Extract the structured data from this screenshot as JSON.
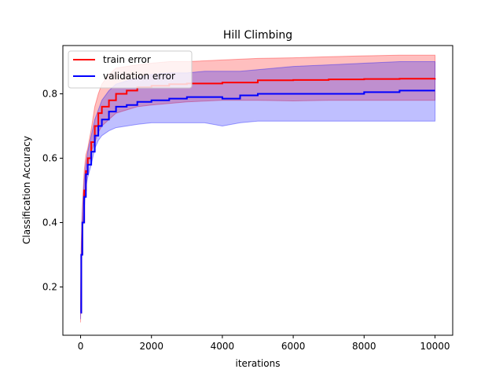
{
  "chart_data": {
    "type": "line",
    "title": "Hill Climbing",
    "xlabel": "iterations",
    "ylabel": "Classification Accuracy",
    "xlim": [
      -500,
      10500
    ],
    "ylim": [
      0.05,
      0.95
    ],
    "xticks": [
      0,
      2000,
      4000,
      6000,
      8000,
      10000
    ],
    "yticks": [
      0.2,
      0.4,
      0.6,
      0.8
    ],
    "grid": false,
    "legend_position": "upper left",
    "series": [
      {
        "name": "train error",
        "color": "#ff0000",
        "band_color": "#ff0000",
        "x": [
          0,
          20,
          50,
          100,
          150,
          200,
          300,
          400,
          500,
          600,
          800,
          1000,
          1300,
          1600,
          2000,
          2500,
          3000,
          4000,
          5000,
          6000,
          7000,
          8000,
          9000,
          10000
        ],
        "y": [
          0.12,
          0.3,
          0.4,
          0.5,
          0.56,
          0.6,
          0.65,
          0.7,
          0.74,
          0.76,
          0.78,
          0.8,
          0.81,
          0.82,
          0.825,
          0.83,
          0.832,
          0.835,
          0.842,
          0.843,
          0.845,
          0.846,
          0.847,
          0.848
        ],
        "upper": [
          0.15,
          0.34,
          0.45,
          0.56,
          0.61,
          0.63,
          0.69,
          0.76,
          0.8,
          0.83,
          0.86,
          0.88,
          0.885,
          0.89,
          0.895,
          0.9,
          0.9,
          0.905,
          0.91,
          0.912,
          0.915,
          0.918,
          0.92,
          0.92
        ],
        "lower": [
          0.09,
          0.26,
          0.36,
          0.46,
          0.52,
          0.57,
          0.62,
          0.65,
          0.68,
          0.7,
          0.72,
          0.74,
          0.75,
          0.76,
          0.765,
          0.77,
          0.775,
          0.78,
          0.78,
          0.778,
          0.78,
          0.78,
          0.78,
          0.78
        ]
      },
      {
        "name": "validation error",
        "color": "#0000ff",
        "band_color": "#0000ff",
        "x": [
          0,
          20,
          50,
          100,
          150,
          200,
          300,
          400,
          500,
          600,
          800,
          1000,
          1300,
          1600,
          2000,
          2500,
          3000,
          3500,
          4000,
          4500,
          5000,
          6000,
          7000,
          8000,
          9000,
          10000
        ],
        "y": [
          0.12,
          0.3,
          0.4,
          0.48,
          0.55,
          0.58,
          0.62,
          0.67,
          0.7,
          0.72,
          0.745,
          0.76,
          0.765,
          0.775,
          0.78,
          0.785,
          0.79,
          0.79,
          0.785,
          0.795,
          0.8,
          0.8,
          0.8,
          0.805,
          0.81,
          0.81
        ],
        "upper": [
          0.14,
          0.32,
          0.43,
          0.53,
          0.58,
          0.62,
          0.67,
          0.72,
          0.75,
          0.78,
          0.81,
          0.83,
          0.84,
          0.85,
          0.86,
          0.865,
          0.865,
          0.87,
          0.87,
          0.87,
          0.875,
          0.885,
          0.89,
          0.895,
          0.9,
          0.9
        ],
        "lower": [
          0.1,
          0.28,
          0.37,
          0.44,
          0.51,
          0.54,
          0.58,
          0.63,
          0.655,
          0.67,
          0.685,
          0.695,
          0.7,
          0.705,
          0.71,
          0.71,
          0.71,
          0.71,
          0.7,
          0.71,
          0.715,
          0.715,
          0.715,
          0.715,
          0.715,
          0.715
        ]
      }
    ]
  }
}
